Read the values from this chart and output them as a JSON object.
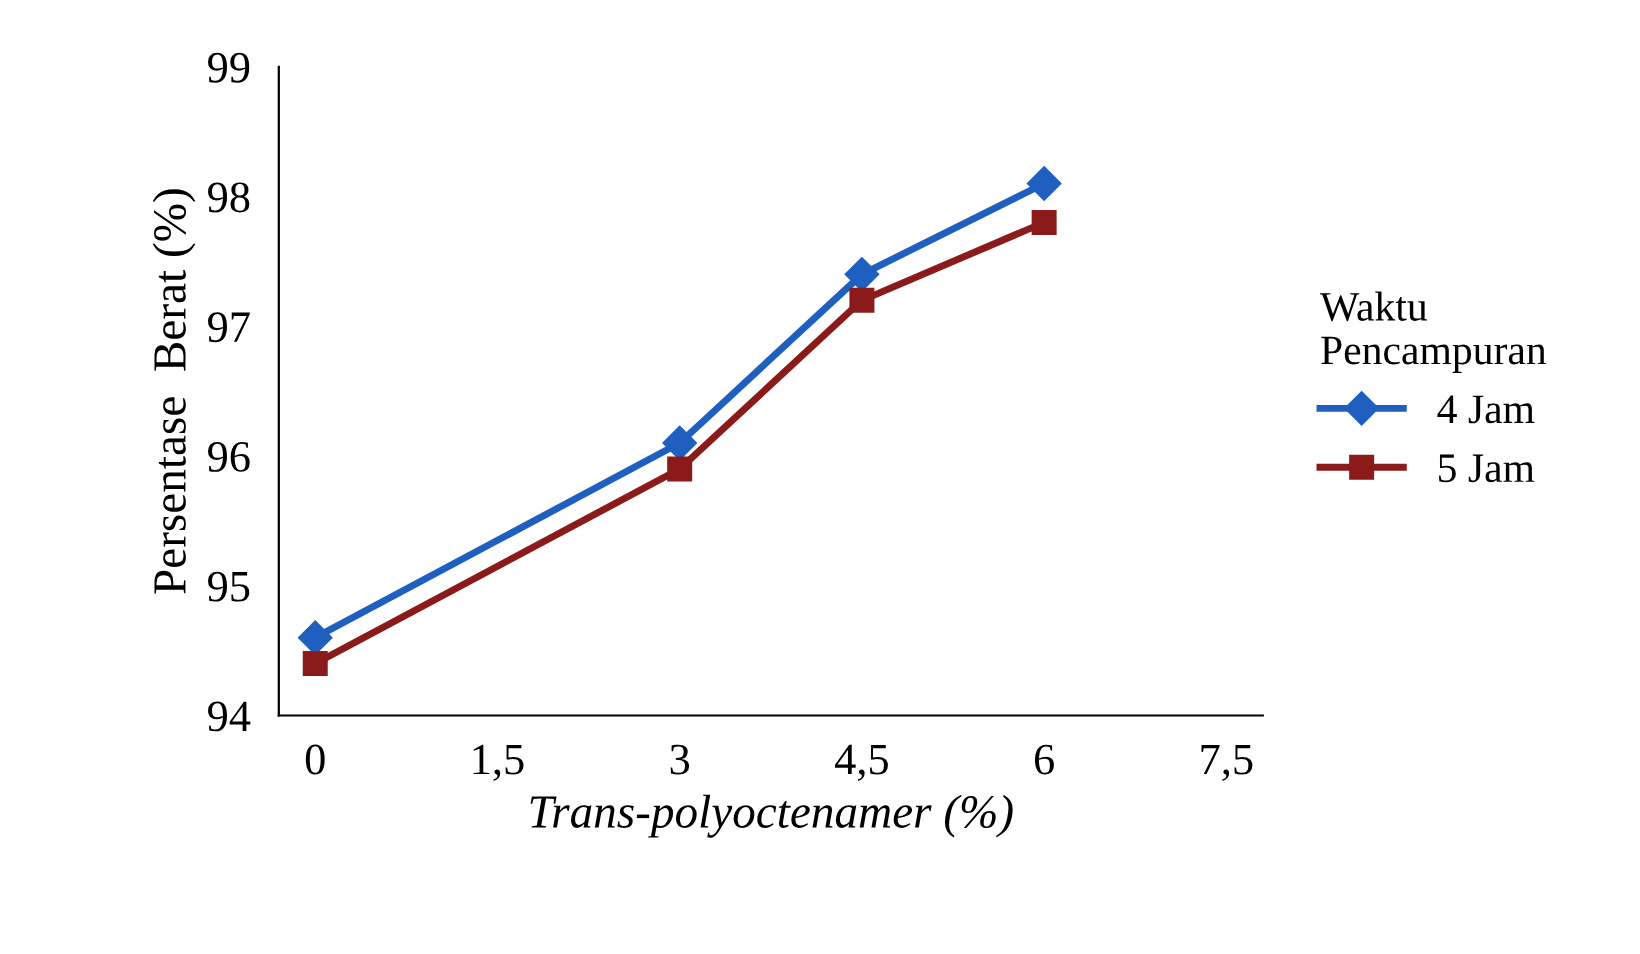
{
  "chart_data": {
    "type": "line",
    "xlabel": "Trans-polyoctenamer (%)",
    "ylabel": "Persentase  Berat (%)",
    "legend_title": "Waktu\nPencampuran",
    "x": [
      0,
      3,
      4.5,
      6
    ],
    "series": [
      {
        "name": "4 Jam",
        "color": "#1f5fbf",
        "marker": "diamond",
        "values": [
          94.6,
          96.1,
          97.4,
          98.1
        ]
      },
      {
        "name": "5 Jam",
        "color": "#8b1a1a",
        "marker": "square",
        "values": [
          94.4,
          95.9,
          97.2,
          97.8
        ]
      }
    ],
    "xlim": [
      -0.3,
      7.8
    ],
    "xticks": [
      0,
      {
        "value": 1.5,
        "label": "1,5"
      },
      3,
      {
        "value": 4.5,
        "label": "4,5"
      },
      6,
      {
        "value": 7.5,
        "label": "7,5"
      }
    ],
    "ylim": [
      94,
      99
    ],
    "yticks": [
      94,
      95,
      96,
      97,
      98,
      99
    ],
    "grid": false,
    "legend": "right",
    "line_style": "solid"
  }
}
